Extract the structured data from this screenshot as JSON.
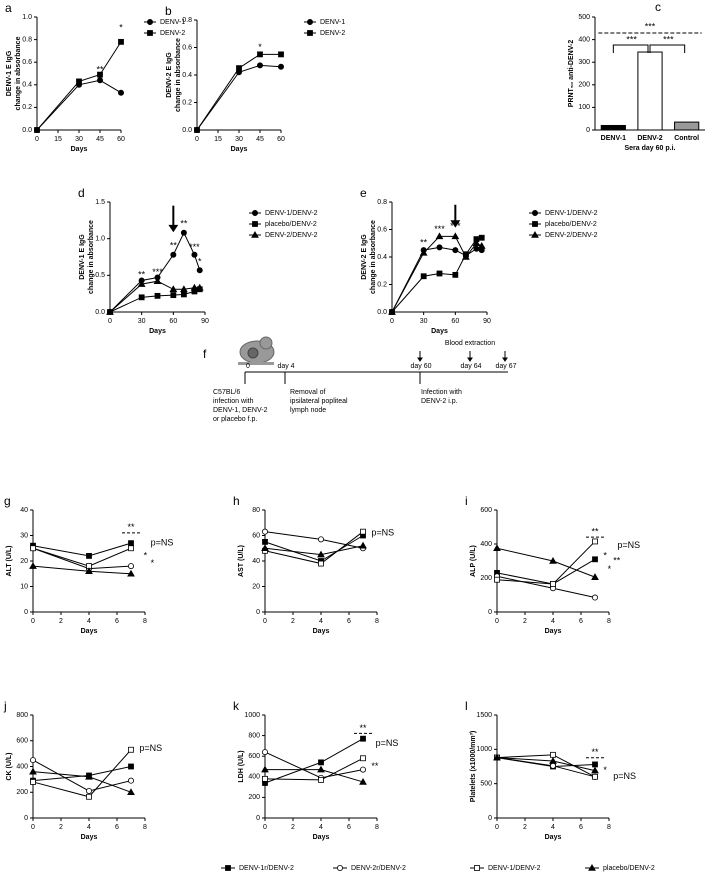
{
  "chart_data": [
    {
      "panel": "a",
      "type": "line",
      "ylabel": [
        "DENV-1 E IgG",
        "change in absorbance"
      ],
      "xlabel": "Days",
      "x": [
        0,
        30,
        45,
        60
      ],
      "xlim": [
        0,
        60
      ],
      "xticks": [
        0,
        15,
        30,
        45,
        60
      ],
      "ylim": [
        0,
        1
      ],
      "yticks": [
        {
          "value": 0,
          "label": "0.0"
        },
        0.2,
        0.4,
        0.6,
        0.8,
        {
          "value": 1,
          "label": "1.0"
        }
      ],
      "legend": "right",
      "series": [
        {
          "name": "DENV-1",
          "color": "#000",
          "marker": "circle",
          "fill": "#000",
          "values": [
            0,
            0.4,
            0.44,
            0.33
          ]
        },
        {
          "name": "DENV-2",
          "color": "#000",
          "marker": "square",
          "fill": "#000",
          "values": [
            0,
            0.43,
            0.49,
            0.78
          ]
        }
      ],
      "annotations": [
        "*",
        "**"
      ]
    },
    {
      "panel": "b",
      "type": "line",
      "ylabel": [
        "DENV-2 E IgG",
        "change in absorbance"
      ],
      "xlabel": "Days",
      "x": [
        0,
        30,
        45,
        60
      ],
      "xlim": [
        0,
        60
      ],
      "xticks": [
        0,
        15,
        30,
        45,
        60
      ],
      "ylim": [
        0,
        0.8
      ],
      "yticks": [
        {
          "value": 0,
          "label": "0.0"
        },
        0.2,
        0.4,
        0.6,
        0.8
      ],
      "legend": "right",
      "series": [
        {
          "name": "DENV-1",
          "color": "#000",
          "marker": "circle",
          "fill": "#000",
          "values": [
            0,
            0.42,
            0.47,
            0.46
          ]
        },
        {
          "name": "DENV-2",
          "color": "#000",
          "marker": "square",
          "fill": "#000",
          "values": [
            0,
            0.45,
            0.55,
            0.55
          ]
        }
      ],
      "annotations": [
        "*"
      ]
    },
    {
      "panel": "c",
      "type": "bar",
      "ylabel": [
        "PRNT₅₀ anti-DENV-2"
      ],
      "xlabel": "Sera day 60 p.i.",
      "categories": [
        "DENV-1",
        "DENV-2",
        "Control"
      ],
      "values": [
        20,
        345,
        35
      ],
      "colors": [
        "#000",
        "#fff",
        "#999"
      ],
      "ylim": [
        0,
        500
      ],
      "yticks": [
        0,
        100,
        200,
        300,
        400,
        500
      ],
      "annotations": [
        "***",
        "***",
        "***"
      ]
    },
    {
      "panel": "d",
      "type": "line",
      "ylabel": [
        "DENV-1 E IgG",
        "change in absorbance"
      ],
      "xlabel": "Days",
      "x": [
        0,
        30,
        45,
        60,
        70,
        80,
        85
      ],
      "xlim": [
        0,
        90
      ],
      "xticks": [
        0,
        30,
        60,
        90
      ],
      "ylim": [
        0,
        1.5
      ],
      "yticks": [
        {
          "value": 0,
          "label": "0.0"
        },
        0.5,
        {
          "value": 1,
          "label": "1.0"
        },
        1.5
      ],
      "legend": "right",
      "series": [
        {
          "name": "DENV-1/DENV-2",
          "color": "#000",
          "marker": "circle",
          "fill": "#000",
          "values": [
            0,
            0.43,
            0.47,
            0.78,
            1.08,
            0.78,
            0.57
          ]
        },
        {
          "name": "placebo/DENV-2",
          "color": "#000",
          "marker": "square",
          "fill": "#000",
          "values": [
            0,
            0.2,
            0.22,
            0.23,
            0.24,
            0.28,
            0.31
          ]
        },
        {
          "name": "DENV-2/DENV-2",
          "color": "#000",
          "marker": "triangle",
          "fill": "#000",
          "values": [
            0,
            0.38,
            0.42,
            0.31,
            0.31,
            0.33,
            0.33
          ]
        }
      ],
      "annotations": [
        "**",
        "***",
        "**",
        "**",
        "***",
        "*"
      ]
    },
    {
      "panel": "e",
      "type": "line",
      "ylabel": [
        "DENV-2 E IgG",
        "change in absorbance"
      ],
      "xlabel": "Days",
      "x": [
        0,
        30,
        45,
        60,
        70,
        80,
        85
      ],
      "xlim": [
        0,
        90
      ],
      "xticks": [
        0,
        30,
        60,
        90
      ],
      "ylim": [
        0,
        0.8
      ],
      "yticks": [
        {
          "value": 0,
          "label": "0.0"
        },
        0.2,
        0.4,
        0.6,
        0.8
      ],
      "legend": "right",
      "series": [
        {
          "name": "DENV-1/DENV-2",
          "color": "#000",
          "marker": "circle",
          "fill": "#000",
          "values": [
            0,
            0.45,
            0.47,
            0.45,
            0.41,
            0.46,
            0.45
          ]
        },
        {
          "name": "placebo/DENV-2",
          "color": "#000",
          "marker": "square",
          "fill": "#000",
          "values": [
            0,
            0.26,
            0.28,
            0.27,
            0.42,
            0.53,
            0.54
          ]
        },
        {
          "name": "DENV-2/DENV-2",
          "color": "#000",
          "marker": "triangle",
          "fill": "#000",
          "values": [
            0,
            0.43,
            0.55,
            0.55,
            0.4,
            0.5,
            0.48
          ]
        }
      ],
      "annotations": [
        "**",
        "***",
        "***"
      ]
    },
    {
      "panel": "g",
      "type": "line",
      "ylabel": [
        "ALT (U/L)"
      ],
      "xlabel": "Days",
      "x": [
        0,
        4,
        7
      ],
      "xlim": [
        0,
        8
      ],
      "xticks": [
        0,
        2,
        4,
        6,
        8
      ],
      "ylim": [
        0,
        40
      ],
      "yticks": [
        0,
        10,
        20,
        30,
        40
      ],
      "series": [
        {
          "name": "DENV-1r/DENV-2",
          "color": "#000",
          "marker": "square",
          "fill": "#000",
          "values": [
            26,
            22,
            27
          ]
        },
        {
          "name": "DENV-2r/DENV-2",
          "color": "#000",
          "marker": "circle",
          "fill": "#fff",
          "values": [
            25,
            17,
            18
          ]
        },
        {
          "name": "DENV-1/DENV-2",
          "color": "#000",
          "marker": "square",
          "fill": "#fff",
          "values": [
            25,
            18,
            25
          ]
        },
        {
          "name": "placebo/DENV-2",
          "color": "#000",
          "marker": "triangle",
          "fill": "#000",
          "values": [
            18,
            16,
            15
          ]
        }
      ],
      "annotations": [
        "**",
        "p=NS",
        "*",
        "*"
      ]
    },
    {
      "panel": "h",
      "type": "line",
      "ylabel": [
        "AST (U/L)"
      ],
      "xlabel": "Days",
      "x": [
        0,
        4,
        7
      ],
      "xlim": [
        0,
        8
      ],
      "xticks": [
        0,
        2,
        4,
        6,
        8
      ],
      "ylim": [
        0,
        80
      ],
      "yticks": [
        0,
        20,
        40,
        60,
        80
      ],
      "series": [
        {
          "name": "DENV-1r/DENV-2",
          "color": "#000",
          "marker": "square",
          "fill": "#000",
          "values": [
            55,
            40,
            60
          ]
        },
        {
          "name": "DENV-2r/DENV-2",
          "color": "#000",
          "marker": "circle",
          "fill": "#fff",
          "values": [
            63,
            57,
            50
          ]
        },
        {
          "name": "DENV-1/DENV-2",
          "color": "#000",
          "marker": "square",
          "fill": "#fff",
          "values": [
            48,
            38,
            63
          ]
        },
        {
          "name": "placebo/DENV-2",
          "color": "#000",
          "marker": "triangle",
          "fill": "#000",
          "values": [
            50,
            45,
            52
          ]
        }
      ],
      "annotations": [
        "p=NS"
      ]
    },
    {
      "panel": "i",
      "type": "line",
      "ylabel": [
        "ALP (U/L)"
      ],
      "xlabel": "Days",
      "x": [
        0,
        4,
        7
      ],
      "xlim": [
        0,
        8
      ],
      "xticks": [
        0,
        2,
        4,
        6,
        8
      ],
      "ylim": [
        0,
        600
      ],
      "yticks": [
        0,
        200,
        400,
        600
      ],
      "series": [
        {
          "name": "DENV-1r/DENV-2",
          "color": "#000",
          "marker": "square",
          "fill": "#000",
          "values": [
            230,
            165,
            310
          ]
        },
        {
          "name": "DENV-2r/DENV-2",
          "color": "#000",
          "marker": "circle",
          "fill": "#fff",
          "values": [
            210,
            140,
            85
          ]
        },
        {
          "name": "DENV-1/DENV-2",
          "color": "#000",
          "marker": "square",
          "fill": "#fff",
          "values": [
            190,
            165,
            415
          ]
        },
        {
          "name": "placebo/DENV-2",
          "color": "#000",
          "marker": "triangle",
          "fill": "#000",
          "values": [
            375,
            300,
            205
          ]
        }
      ],
      "annotations": [
        "**",
        "*",
        "*",
        "**",
        "p=NS"
      ]
    },
    {
      "panel": "j",
      "type": "line",
      "ylabel": [
        "CK (U/L)"
      ],
      "xlabel": "Days",
      "x": [
        0,
        4,
        7
      ],
      "xlim": [
        0,
        8
      ],
      "xticks": [
        0,
        2,
        4,
        6,
        8
      ],
      "ylim": [
        0,
        800
      ],
      "yticks": [
        0,
        200,
        400,
        600,
        800
      ],
      "series": [
        {
          "name": "DENV-1r/DENV-2",
          "color": "#000",
          "marker": "square",
          "fill": "#000",
          "values": [
            290,
            330,
            400
          ]
        },
        {
          "name": "DENV-2r/DENV-2",
          "color": "#000",
          "marker": "circle",
          "fill": "#fff",
          "values": [
            450,
            210,
            290
          ]
        },
        {
          "name": "DENV-1/DENV-2",
          "color": "#000",
          "marker": "square",
          "fill": "#fff",
          "values": [
            280,
            165,
            530
          ]
        },
        {
          "name": "placebo/DENV-2",
          "color": "#000",
          "marker": "triangle",
          "fill": "#000",
          "values": [
            360,
            320,
            200
          ]
        }
      ],
      "annotations": [
        "p=NS"
      ]
    },
    {
      "panel": "k",
      "type": "line",
      "ylabel": [
        "LDH (U/L)"
      ],
      "xlabel": "Days",
      "x": [
        0,
        4,
        7
      ],
      "xlim": [
        0,
        8
      ],
      "xticks": [
        0,
        2,
        4,
        6,
        8
      ],
      "ylim": [
        0,
        1000
      ],
      "yticks": [
        0,
        200,
        400,
        600,
        800,
        1000
      ],
      "series": [
        {
          "name": "DENV-1r/DENV-2",
          "color": "#000",
          "marker": "square",
          "fill": "#000",
          "values": [
            340,
            540,
            770
          ]
        },
        {
          "name": "DENV-2r/DENV-2",
          "color": "#000",
          "marker": "circle",
          "fill": "#fff",
          "values": [
            640,
            390,
            470
          ]
        },
        {
          "name": "DENV-1/DENV-2",
          "color": "#000",
          "marker": "square",
          "fill": "#fff",
          "values": [
            380,
            370,
            580
          ]
        },
        {
          "name": "placebo/DENV-2",
          "color": "#000",
          "marker": "triangle",
          "fill": "#000",
          "values": [
            470,
            470,
            350
          ]
        }
      ],
      "annotations": [
        "**",
        "p=NS",
        "**"
      ]
    },
    {
      "panel": "l",
      "type": "line",
      "ylabel": [
        "Platelets (x1000/mm³)"
      ],
      "xlabel": "Days",
      "x": [
        0,
        4,
        7
      ],
      "xlim": [
        0,
        8
      ],
      "xticks": [
        0,
        2,
        4,
        6,
        8
      ],
      "ylim": [
        0,
        1500
      ],
      "yticks": [
        0,
        500,
        1000,
        1500
      ],
      "series": [
        {
          "name": "DENV-1r/DENV-2",
          "color": "#000",
          "marker": "square",
          "fill": "#000",
          "values": [
            880,
            750,
            780
          ]
        },
        {
          "name": "DENV-2r/DENV-2",
          "color": "#000",
          "marker": "circle",
          "fill": "#fff",
          "values": [
            880,
            760,
            600
          ]
        },
        {
          "name": "DENV-1/DENV-2",
          "color": "#000",
          "marker": "square",
          "fill": "#fff",
          "values": [
            880,
            920,
            600
          ]
        },
        {
          "name": "placebo/DENV-2",
          "color": "#000",
          "marker": "triangle",
          "fill": "#000",
          "values": [
            880,
            830,
            690
          ]
        }
      ],
      "annotations": [
        "**",
        "*",
        "p=NS"
      ]
    }
  ],
  "diagram": {
    "panel": "f",
    "timeline": [
      "0",
      "day 4",
      "day 60",
      "day 64",
      "day 67"
    ],
    "header": "Blood extraction",
    "notes": [
      [
        "C57BL/6",
        "infection with",
        "DENV-1, DENV-2",
        "or placebo f.p."
      ],
      [
        "Removal of",
        "ipsilateral popliteal",
        "lymph node"
      ],
      [
        "Infection with",
        "DENV-2 i.p."
      ]
    ]
  }
}
